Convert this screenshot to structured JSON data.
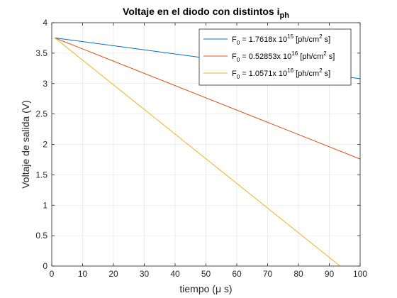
{
  "chart_data": {
    "type": "line",
    "title": "Voltaje en el diodo con distintos i",
    "title_subscript": "ph",
    "xlabel": "tiempo (μ s)",
    "ylabel": "Voltaje de salida (V)",
    "xlim": [
      0,
      100
    ],
    "ylim": [
      0,
      4
    ],
    "xticks": [
      0,
      10,
      20,
      30,
      40,
      50,
      60,
      70,
      80,
      90,
      100
    ],
    "yticks": [
      0,
      0.5,
      1,
      1.5,
      2,
      2.5,
      3,
      3.5,
      4
    ],
    "xtick_labels": [
      "0",
      "10",
      "20",
      "30",
      "40",
      "50",
      "60",
      "70",
      "80",
      "90",
      "100"
    ],
    "ytick_labels": [
      "0",
      "0.5",
      "1",
      "1.5",
      "2",
      "2.5",
      "3",
      "3.5",
      "4"
    ],
    "grid": true,
    "legend_position": "top-right",
    "series": [
      {
        "name": "F0 = 1.7618x 10^15 [ph/cm^2 s]",
        "color": "#0072BD",
        "x": [
          1,
          100
        ],
        "y": [
          3.75,
          3.08
        ]
      },
      {
        "name": "F0 = 0.52853x 10^16 [ph/cm^2 s]",
        "color": "#D95319",
        "x": [
          1,
          100
        ],
        "y": [
          3.75,
          1.76
        ]
      },
      {
        "name": "F0 = 1.0571x 10^16 [ph/cm^2 s]",
        "color": "#EDB120",
        "x": [
          1,
          93.5
        ],
        "y": [
          3.75,
          0
        ]
      }
    ],
    "legend_entries": [
      {
        "f": "F",
        "sub": "0",
        "mid": " = 1.7618x 10",
        "exp": "15",
        "unit": " [ph/cm",
        "unit_exp": "2",
        "tail": " s]"
      },
      {
        "f": "F",
        "sub": "0",
        "mid": " = 0.52853x 10",
        "exp": "16",
        "unit": " [ph/cm",
        "unit_exp": "2",
        "tail": " s]"
      },
      {
        "f": "F",
        "sub": "0",
        "mid": " = 1.0571x 10",
        "exp": "16",
        "unit": " [ph/cm",
        "unit_exp": "2",
        "tail": " s]"
      }
    ]
  }
}
